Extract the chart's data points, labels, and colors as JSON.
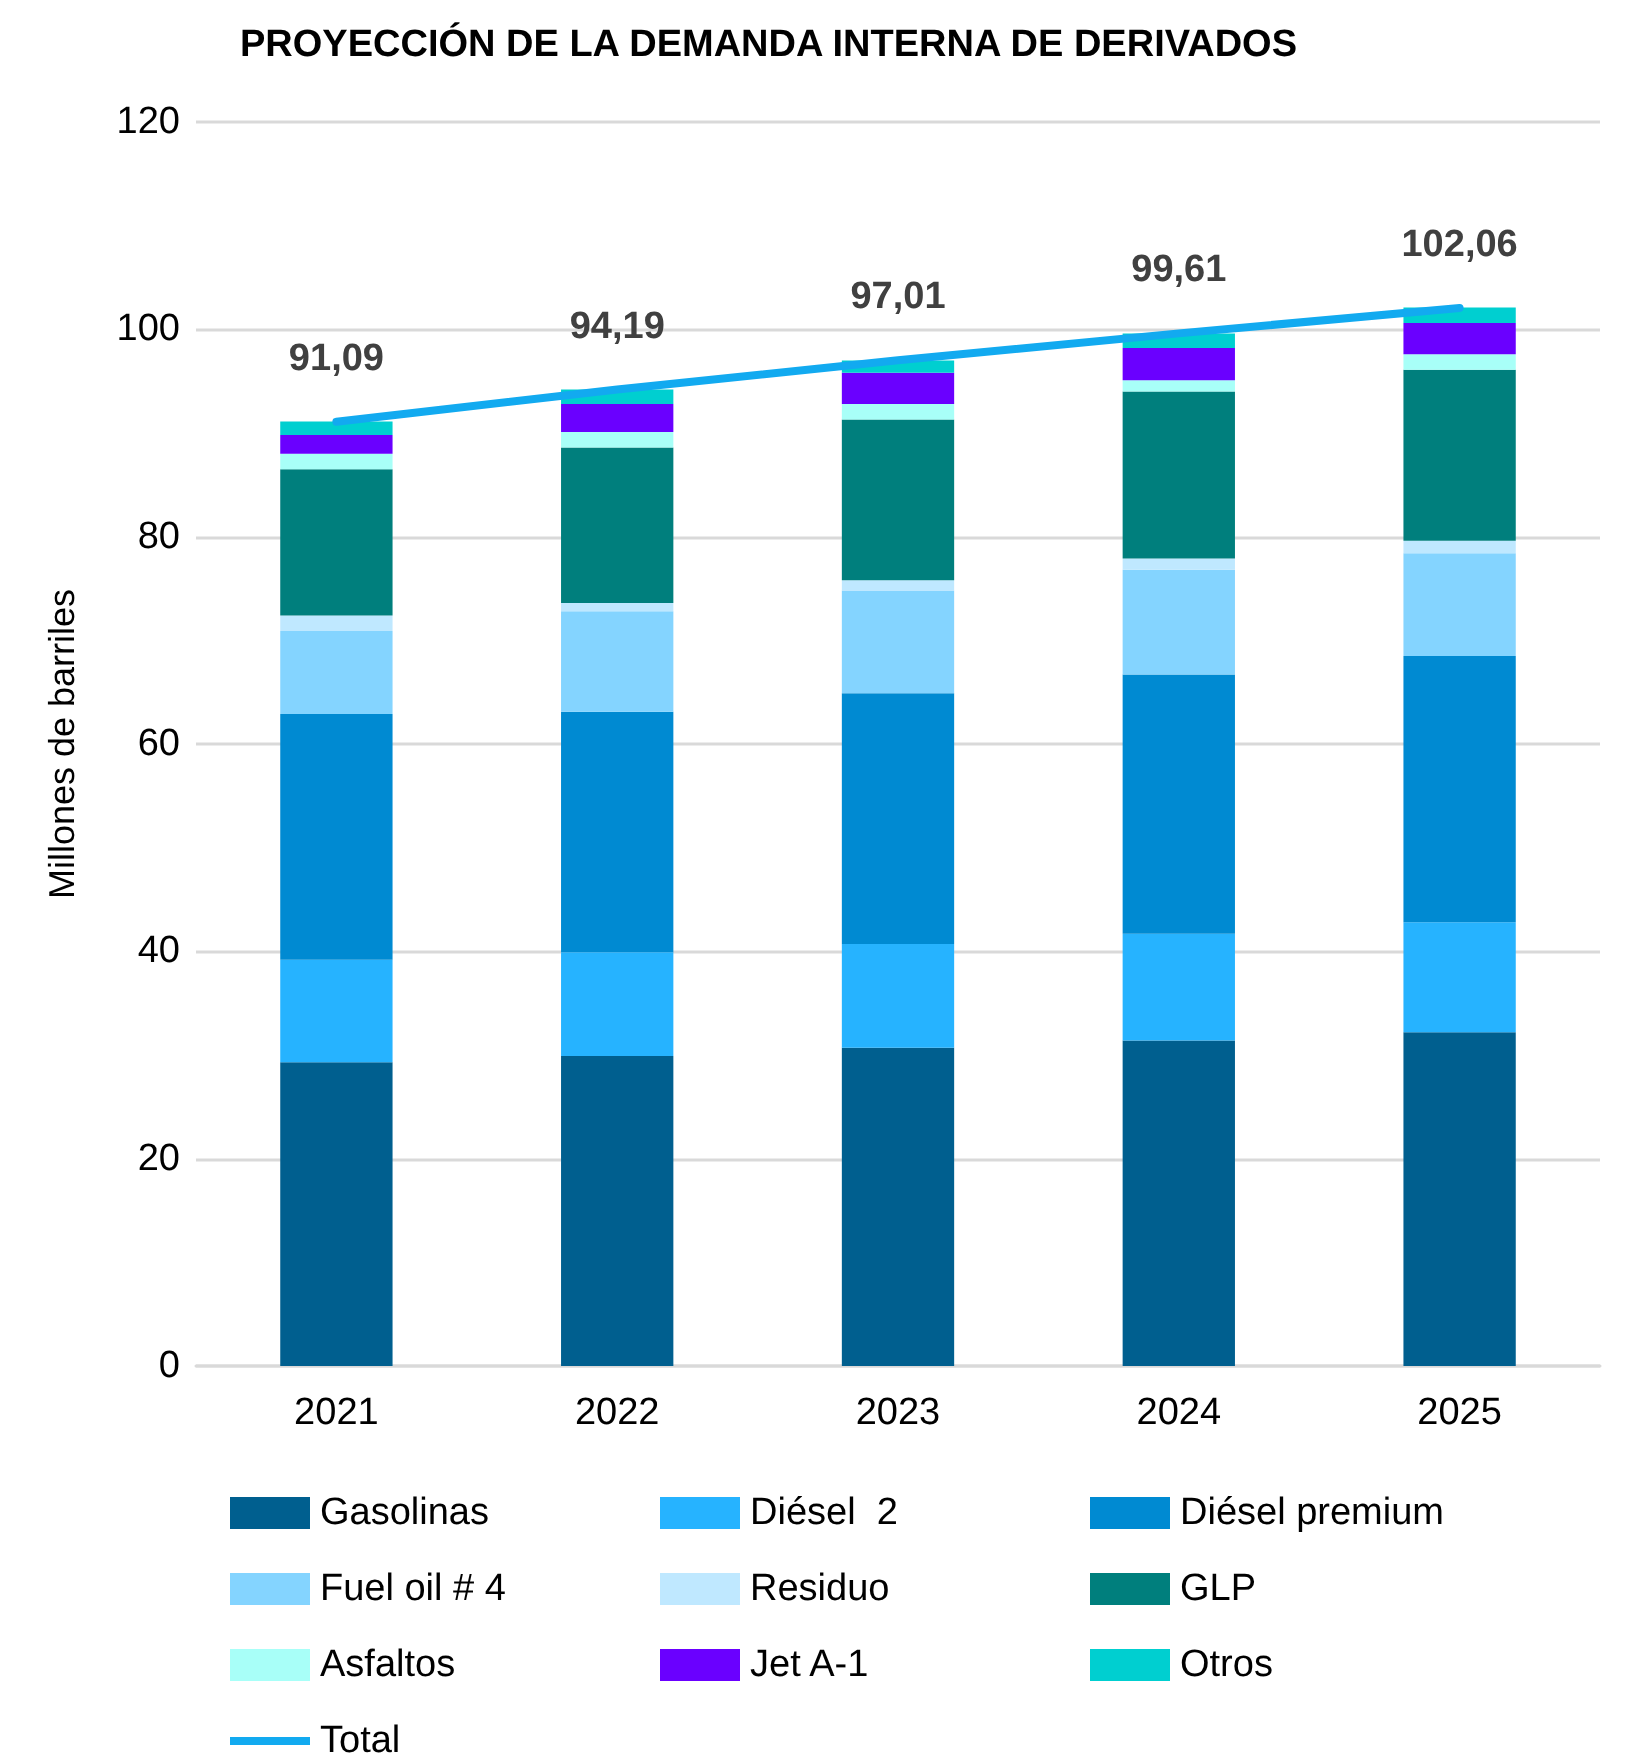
{
  "chart_data": {
    "type": "bar",
    "title": "PROYECCIÓN DE LA DEMANDA INTERNA DE DERIVADOS",
    "ylabel": "Millones de barriles",
    "categories": [
      "2021",
      "2022",
      "2023",
      "2024",
      "2025"
    ],
    "stacked": true,
    "series": [
      {
        "name": "Gasolinas",
        "color": "#005f8f",
        "values": [
          29.3,
          29.9,
          30.7,
          31.4,
          32.2
        ]
      },
      {
        "name": "Diésel  2",
        "color": "#26b3ff",
        "values": [
          9.9,
          10.0,
          10.0,
          10.3,
          10.6
        ]
      },
      {
        "name": "Diésel premium",
        "color": "#008ad2",
        "values": [
          23.7,
          23.2,
          24.2,
          25.0,
          25.7
        ]
      },
      {
        "name": "Fuel oil # 4",
        "color": "#84d4ff",
        "values": [
          8.0,
          9.7,
          9.9,
          10.1,
          9.9
        ]
      },
      {
        "name": "Residuo",
        "color": "#bfe8ff",
        "values": [
          1.5,
          0.8,
          1.0,
          1.1,
          1.2
        ]
      },
      {
        "name": "GLP",
        "color": "#007f7d",
        "values": [
          14.1,
          15.0,
          15.5,
          16.1,
          16.5
        ]
      },
      {
        "name": "Asfaltos",
        "color": "#a8fff8",
        "values": [
          1.5,
          1.5,
          1.5,
          1.1,
          1.5
        ]
      },
      {
        "name": "Jet A-1",
        "color": "#6a00ff",
        "values": [
          1.8,
          2.7,
          3.0,
          3.1,
          3.0
        ]
      },
      {
        "name": "Otros",
        "color": "#00cfd0",
        "values": [
          1.3,
          1.4,
          1.2,
          1.4,
          1.5
        ]
      },
      {
        "name": "Total",
        "type": "line",
        "color": "#12aaf0",
        "values": [
          91.09,
          94.19,
          97.01,
          99.61,
          102.06
        ],
        "value_labels": [
          "91,09",
          "94,19",
          "97,01",
          "99,61",
          "102,06"
        ]
      }
    ],
    "ylim": [
      0,
      120
    ],
    "yticks": [
      0,
      20,
      40,
      60,
      80,
      100,
      120
    ],
    "grid": "y",
    "legend": "bottom",
    "marker": "none"
  }
}
